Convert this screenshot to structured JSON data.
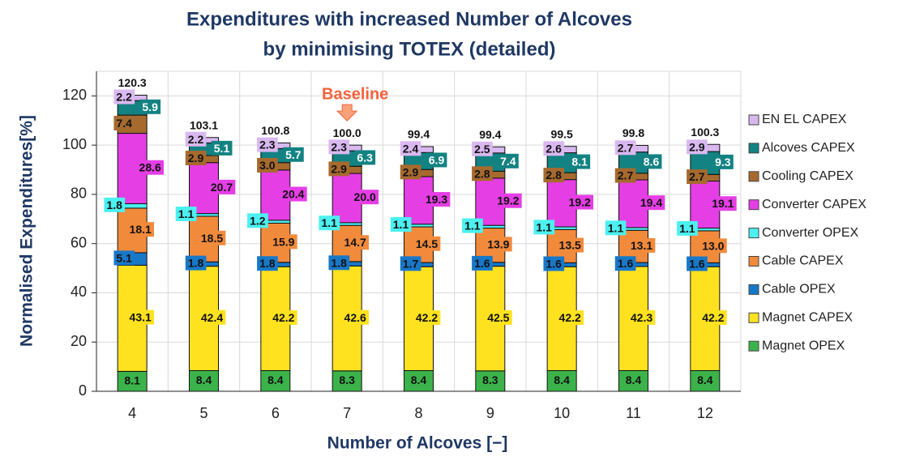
{
  "chart_data": {
    "type": "stacked_bar",
    "title": [
      "Expenditures with increased Number of Alcoves",
      "by minimising TOTEX (detailed)"
    ],
    "x_label": "Number of Alcoves [−]",
    "y_label": "Normalised Expenditures[%]",
    "categories": [
      "4",
      "5",
      "6",
      "7",
      "8",
      "9",
      "10",
      "11",
      "12"
    ],
    "series": [
      {
        "name": "Magnet OPEX",
        "color": "#3cb34a",
        "values": [
          8.1,
          8.4,
          8.4,
          8.3,
          8.4,
          8.3,
          8.4,
          8.4,
          8.4
        ]
      },
      {
        "name": "Magnet CAPEX",
        "color": "#ffe21f",
        "values": [
          43.1,
          42.4,
          42.2,
          42.6,
          42.2,
          42.5,
          42.2,
          42.3,
          42.2
        ]
      },
      {
        "name": "Cable OPEX",
        "color": "#1878c8",
        "values": [
          5.1,
          1.8,
          1.8,
          1.8,
          1.7,
          1.6,
          1.6,
          1.6,
          1.6
        ]
      },
      {
        "name": "Cable CAPEX",
        "color": "#f28a3c",
        "values": [
          18.1,
          18.5,
          15.9,
          14.7,
          14.5,
          13.9,
          13.5,
          13.1,
          13.0
        ],
        "value_labels": [
          "18.1",
          "18.5",
          "15.9",
          "14.7",
          "14.5",
          "13.9",
          "13.5",
          "13.1",
          "13.0"
        ]
      },
      {
        "name": "Converter OPEX",
        "color": "#4cf0f0",
        "values": [
          1.8,
          1.1,
          1.2,
          1.1,
          1.1,
          1.1,
          1.1,
          1.1,
          1.1
        ]
      },
      {
        "name": "Converter CAPEX",
        "color": "#e53ee5",
        "values": [
          28.6,
          20.7,
          20.4,
          20.0,
          19.3,
          19.2,
          19.2,
          19.4,
          19.1
        ],
        "value_labels": [
          "28.6",
          "20.7",
          "20.4",
          "20.0",
          "19.3",
          "19.2",
          "19.2",
          "19.4",
          "19.1"
        ]
      },
      {
        "name": "Cooling CAPEX",
        "color": "#a66a2e",
        "values": [
          7.4,
          2.9,
          3.0,
          2.9,
          2.9,
          2.8,
          2.8,
          2.7,
          2.7
        ],
        "value_labels": [
          "7.4",
          "2.9",
          "3.0",
          "2.9",
          "2.9",
          "2.8",
          "2.8",
          "2.7",
          "2.7"
        ]
      },
      {
        "name": "Alcoves CAPEX",
        "color": "#138282",
        "values": [
          5.9,
          5.1,
          5.7,
          6.3,
          6.9,
          7.4,
          8.1,
          8.6,
          9.3
        ]
      },
      {
        "name": "EN EL CAPEX",
        "color": "#d9b8f0",
        "values": [
          2.2,
          2.2,
          2.3,
          2.3,
          2.4,
          2.5,
          2.6,
          2.7,
          2.9
        ]
      }
    ],
    "totals": {
      "values": [
        120.3,
        103.1,
        100.8,
        100.0,
        99.4,
        99.4,
        99.5,
        99.8,
        100.3
      ],
      "value_labels": [
        "120.3",
        "103.1",
        "100.8",
        "100.0",
        "99.4",
        "99.4",
        "99.5",
        "99.8",
        "100.3"
      ]
    },
    "annotation": {
      "text": "Baseline",
      "category": "7",
      "color": "#f4623a"
    },
    "ylim": [
      0,
      130
    ],
    "yticks": [
      0,
      20,
      40,
      60,
      80,
      100,
      120
    ],
    "grid": true
  }
}
